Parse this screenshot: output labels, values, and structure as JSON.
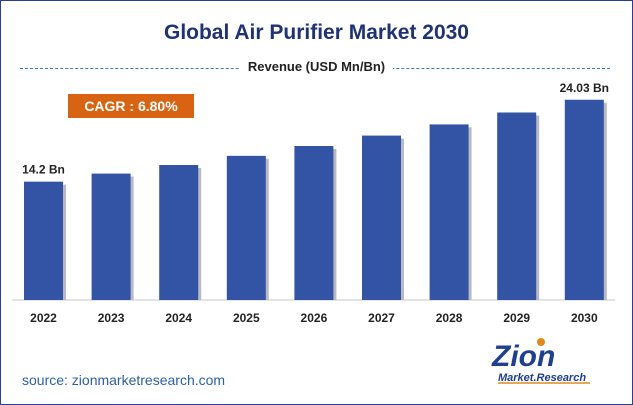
{
  "chart_data": {
    "type": "bar",
    "title": "Global Air Purifier Market 2030",
    "subtitle": "Revenue (USD Mn/Bn)",
    "categories": [
      "2022",
      "2023",
      "2024",
      "2025",
      "2026",
      "2027",
      "2028",
      "2029",
      "2030"
    ],
    "values": [
      14.2,
      15.17,
      16.2,
      17.3,
      18.48,
      19.73,
      21.07,
      22.5,
      24.03
    ],
    "data_labels": [
      {
        "index": 0,
        "text": "14.2 Bn"
      },
      {
        "index": 8,
        "text": "24.03 Bn"
      }
    ],
    "ylim": [
      0,
      26.4
    ],
    "grid": false,
    "bar_color": "#3353a5"
  },
  "badge": {
    "label": "CAGR : 6.80%",
    "color": "#d86413"
  },
  "footer": {
    "source": "source: zionmarketresearch.com"
  },
  "logo": {
    "word1": "Zion",
    "word2": "Market.Research"
  }
}
